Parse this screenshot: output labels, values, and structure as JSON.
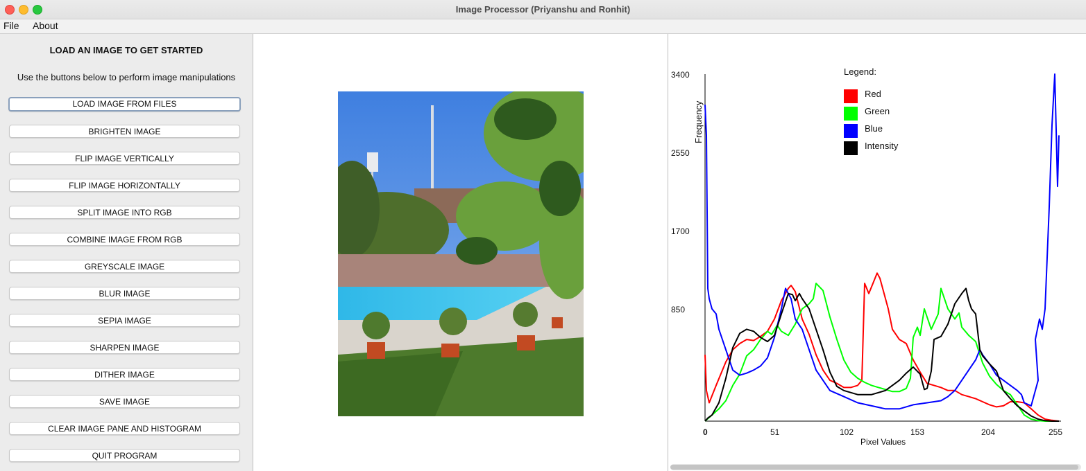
{
  "window": {
    "title": "Image Processor (Priyanshu and Ronhit)"
  },
  "menu": {
    "file": "File",
    "about": "About"
  },
  "left_panel": {
    "title": "LOAD AN IMAGE TO GET STARTED",
    "subtitle": "Use the buttons below to perform image manipulations",
    "buttons": [
      "LOAD IMAGE FROM FILES",
      "BRIGHTEN IMAGE",
      "FLIP IMAGE VERTICALLY",
      "FLIP IMAGE HORIZONTALLY",
      "SPLIT IMAGE INTO RGB",
      "COMBINE IMAGE FROM RGB",
      "GREYSCALE IMAGE",
      "BLUR IMAGE",
      "SEPIA IMAGE",
      "SHARPEN IMAGE",
      "DITHER IMAGE",
      "SAVE IMAGE",
      "CLEAR IMAGE PANE AND HISTOGRAM",
      "QUIT PROGRAM"
    ]
  },
  "histogram": {
    "ylabel": "Frequency",
    "xlabel": "Pixel Values",
    "legend_title": "Legend:",
    "legend": [
      {
        "name": "Red",
        "color": "#ff0000"
      },
      {
        "name": "Green",
        "color": "#00ff00"
      },
      {
        "name": "Blue",
        "color": "#0000ff"
      },
      {
        "name": "Intensity",
        "color": "#000000"
      }
    ],
    "yticks": [
      "3400",
      "2550",
      "1700",
      "850"
    ],
    "xticks": [
      "0",
      "51",
      "102",
      "153",
      "204",
      "255"
    ]
  },
  "chart_data": {
    "type": "line",
    "xlabel": "Pixel Values",
    "ylabel": "Frequency",
    "xlim": [
      0,
      255
    ],
    "ylim": [
      0,
      3400
    ],
    "series": [
      {
        "name": "Red",
        "color": "#ff0000",
        "x": [
          0,
          1,
          3,
          8,
          15,
          20,
          25,
          30,
          35,
          40,
          45,
          50,
          55,
          60,
          62,
          65,
          70,
          75,
          80,
          85,
          90,
          95,
          100,
          105,
          110,
          113,
          115,
          118,
          121,
          124,
          126,
          128,
          132,
          135,
          140,
          145,
          150,
          155,
          160,
          165,
          170,
          175,
          180,
          185,
          190,
          195,
          200,
          205,
          210,
          215,
          220,
          225,
          230,
          235,
          240,
          245,
          250,
          255
        ],
        "y": [
          650,
          300,
          180,
          350,
          580,
          700,
          760,
          800,
          790,
          830,
          880,
          1000,
          1180,
          1300,
          1330,
          1270,
          1000,
          850,
          650,
          500,
          400,
          370,
          330,
          330,
          350,
          400,
          1350,
          1250,
          1350,
          1450,
          1400,
          1300,
          1100,
          900,
          800,
          760,
          600,
          480,
          370,
          350,
          330,
          300,
          300,
          260,
          240,
          220,
          190,
          160,
          140,
          150,
          190,
          190,
          180,
          120,
          60,
          20,
          8,
          0
        ]
      },
      {
        "name": "Green",
        "color": "#00ff00",
        "x": [
          0,
          5,
          10,
          15,
          20,
          25,
          30,
          35,
          40,
          45,
          48,
          52,
          55,
          60,
          65,
          70,
          75,
          78,
          80,
          85,
          90,
          95,
          100,
          105,
          110,
          115,
          120,
          125,
          130,
          135,
          140,
          145,
          148,
          150,
          153,
          155,
          158,
          163,
          168,
          170,
          175,
          180,
          183,
          185,
          190,
          195,
          200,
          205,
          210,
          215,
          220,
          225,
          230,
          235,
          240,
          245,
          250,
          255
        ],
        "y": [
          0,
          60,
          120,
          200,
          350,
          460,
          640,
          700,
          800,
          880,
          850,
          940,
          880,
          840,
          950,
          1100,
          1150,
          1200,
          1350,
          1280,
          1020,
          800,
          600,
          480,
          420,
          380,
          350,
          330,
          310,
          290,
          290,
          320,
          420,
          820,
          920,
          840,
          1100,
          900,
          1050,
          1300,
          1100,
          1000,
          1060,
          920,
          840,
          780,
          570,
          440,
          360,
          300,
          260,
          160,
          60,
          20,
          5,
          0,
          0,
          0
        ]
      },
      {
        "name": "Blue",
        "color": "#0000ff",
        "x": [
          0,
          1,
          2,
          3,
          5,
          8,
          10,
          15,
          20,
          25,
          30,
          35,
          40,
          45,
          50,
          55,
          58,
          60,
          62,
          65,
          70,
          75,
          80,
          85,
          90,
          100,
          110,
          120,
          130,
          140,
          150,
          160,
          170,
          175,
          180,
          185,
          190,
          195,
          198,
          200,
          205,
          210,
          215,
          220,
          225,
          228,
          230,
          235,
          240,
          238,
          241,
          243,
          245,
          248,
          250,
          252,
          254,
          255
        ],
        "y": [
          3100,
          2800,
          1300,
          1200,
          1100,
          1050,
          900,
          700,
          500,
          450,
          470,
          500,
          540,
          620,
          820,
          1100,
          1300,
          1250,
          1200,
          1000,
          900,
          700,
          500,
          400,
          300,
          240,
          180,
          150,
          120,
          120,
          160,
          180,
          200,
          240,
          300,
          400,
          500,
          600,
          700,
          650,
          560,
          450,
          400,
          350,
          300,
          260,
          180,
          150,
          400,
          800,
          1000,
          900,
          1100,
          2100,
          2900,
          3400,
          2300,
          2800
        ]
      },
      {
        "name": "Intensity",
        "color": "#000000",
        "x": [
          0,
          2,
          5,
          10,
          15,
          20,
          25,
          30,
          35,
          40,
          45,
          50,
          55,
          60,
          63,
          65,
          68,
          70,
          75,
          80,
          85,
          90,
          95,
          100,
          110,
          120,
          130,
          140,
          145,
          150,
          155,
          158,
          160,
          163,
          165,
          170,
          175,
          180,
          185,
          188,
          190,
          192,
          195,
          198,
          200,
          205,
          210,
          215,
          220,
          225,
          230,
          235,
          240,
          245,
          250,
          255
        ],
        "y": [
          0,
          30,
          60,
          180,
          420,
          720,
          860,
          900,
          880,
          820,
          780,
          840,
          1050,
          1250,
          1240,
          1180,
          1250,
          1200,
          1100,
          900,
          700,
          480,
          340,
          300,
          260,
          260,
          300,
          400,
          470,
          530,
          460,
          310,
          320,
          490,
          800,
          830,
          950,
          1150,
          1250,
          1300,
          1180,
          1100,
          1050,
          700,
          640,
          560,
          490,
          300,
          220,
          150,
          100,
          50,
          20,
          5,
          0,
          0
        ]
      }
    ]
  }
}
